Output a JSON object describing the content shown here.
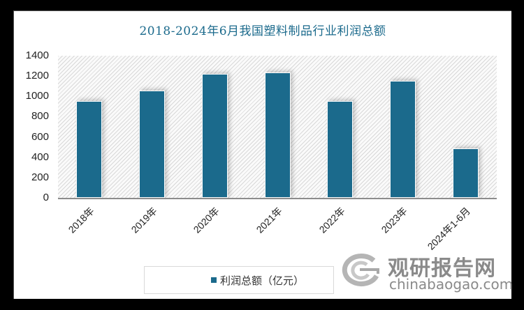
{
  "chart_data": {
    "type": "bar",
    "title": "2018-2024年6月我国塑料制品行业利润总额",
    "categories": [
      "2018年",
      "2019年",
      "2020年",
      "2021年",
      "2022年",
      "2023年",
      "2024年1-6月"
    ],
    "series": [
      {
        "name": "利润总额（亿元）",
        "values": [
          954,
          1057,
          1222,
          1235,
          954,
          1153,
          487
        ],
        "color": "#1b6a8c"
      }
    ],
    "xlabel": "",
    "ylabel": "",
    "ylim": [
      0,
      1400
    ],
    "yticks": [
      0,
      200,
      400,
      600,
      800,
      1000,
      1200,
      1400
    ],
    "grid": false,
    "legend_position": "bottom"
  },
  "title": "2018-2024年6月我国塑料制品行业利润总额",
  "yaxis": {
    "ticks": [
      "0",
      "200",
      "400",
      "600",
      "800",
      "1000",
      "1200",
      "1400"
    ]
  },
  "xaxis": {
    "labels": [
      "2018年",
      "2019年",
      "2020年",
      "2021年",
      "2022年",
      "2023年",
      "2024年1-6月"
    ]
  },
  "legend": {
    "label": "利润总额（亿元）"
  },
  "watermark": {
    "name_cn": "观研报告网",
    "domain": "chinabaogao.com"
  },
  "colors": {
    "bar": "#1b6a8c",
    "title": "#1b6a8c",
    "frame": "#000000"
  }
}
